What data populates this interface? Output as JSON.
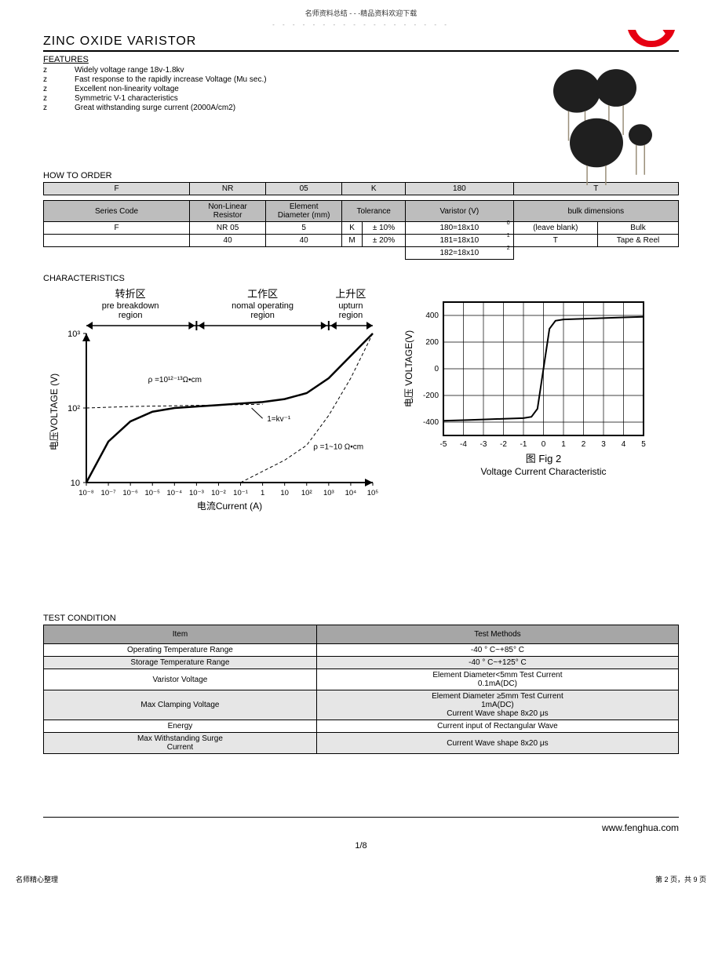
{
  "header_note": "名师资料总结 - - -精品资料欢迎下载",
  "dotted": "- - - - - - - - - - - - - - - - - -",
  "title": "ZINC  OXIDE  VARISTOR",
  "features_heading": "FEATURES",
  "features": [
    "Widely voltage range 18v-1.8kv",
    "Fast response to the rapidly increase Voltage (Mu sec.)",
    "Excellent non-linearity voltage",
    "Symmetric V-1 characteristics",
    "Great withstanding surge current (2000A/cm2)"
  ],
  "bullet_char": "z",
  "how_to_order_heading": "HOW TO ORDER",
  "order_row": [
    "F",
    "NR",
    "05",
    "K",
    "180",
    "T"
  ],
  "order_header": [
    "Series Code",
    "Non-Linear\nResistor",
    "Element\nDiameter (mm)",
    "Tolerance",
    "Varistor (V)",
    "bulk dimensions"
  ],
  "order_rows": [
    [
      "F",
      "NR 05",
      "5",
      "K",
      "±  10%",
      "180=18x10",
      "0",
      "(leave blank)",
      "Bulk"
    ],
    [
      "",
      "40",
      "40",
      "M",
      "±  20%",
      "181=18x10",
      "1",
      "T",
      "Tape & Reel"
    ],
    [
      "",
      "",
      "",
      "",
      "",
      "182=18x10",
      "2",
      "",
      ""
    ]
  ],
  "characteristics_heading": "CHARACTERISTICS",
  "chart1": {
    "type": "line-loglog",
    "regions": [
      {
        "cn": "转折区",
        "en1": "pre breakdown",
        "en2": "region"
      },
      {
        "cn": "工作区",
        "en1": "nomal operating",
        "en2": "region"
      },
      {
        "cn": "上升区",
        "en1": "upturn",
        "en2": "region"
      }
    ],
    "ylabel": "电压VOLTAGE (V)",
    "xlabel": "电流Current (A)",
    "yticks": [
      "10",
      "10²",
      "10³"
    ],
    "xticks": [
      "10⁻⁸",
      "10⁻⁷",
      "10⁻⁶",
      "10⁻⁵",
      "10⁻⁴",
      "10⁻³",
      "10⁻²",
      "10⁻¹",
      "1",
      "10",
      "10²",
      "10³",
      "10⁴",
      "10⁵"
    ],
    "annotations": [
      "ρ =10¹²⁻¹³Ω•cm",
      "1=kv⁻¹",
      "ρ =1~10 Ω•cm"
    ],
    "colors": {
      "axis": "#000000",
      "curve_main": "#000000",
      "curve_dash": "#000000",
      "bg": "#ffffff"
    },
    "font_size_label": 12,
    "font_size_tick": 11,
    "line_width_main": 2.5,
    "line_width_dash": 1,
    "dash_pattern": "4 3",
    "main_curve": [
      {
        "x": -8,
        "y": 1.0
      },
      {
        "x": -7,
        "y": 1.55
      },
      {
        "x": -6,
        "y": 1.82
      },
      {
        "x": -5,
        "y": 1.95
      },
      {
        "x": -4,
        "y": 2.0
      },
      {
        "x": -3,
        "y": 2.02
      },
      {
        "x": -2,
        "y": 2.04
      },
      {
        "x": -1,
        "y": 2.06
      },
      {
        "x": 0,
        "y": 2.08
      },
      {
        "x": 1,
        "y": 2.12
      },
      {
        "x": 2,
        "y": 2.2
      },
      {
        "x": 3,
        "y": 2.4
      },
      {
        "x": 4,
        "y": 2.7
      },
      {
        "x": 5,
        "y": 3.0
      }
    ],
    "region_splits": [
      -3,
      3
    ]
  },
  "chart2": {
    "type": "line",
    "ylabel": "电压 VOLTAGE(V)",
    "yticks": [
      "400",
      "200",
      "0",
      "-200",
      "-400"
    ],
    "xticks": [
      "-5",
      "-4",
      "-3",
      "-2",
      "-1",
      "0",
      "1",
      "2",
      "3",
      "4",
      "5"
    ],
    "caption_cn": "图 Fig 2",
    "caption_en": "Voltage Current Characteristic",
    "colors": {
      "axis": "#000000",
      "grid": "#000000",
      "curve": "#000000",
      "bg": "#ffffff"
    },
    "font_size_label": 12,
    "font_size_tick": 10,
    "line_width": 2,
    "curve": [
      {
        "x": -5,
        "y": -390
      },
      {
        "x": -4,
        "y": -385
      },
      {
        "x": -3,
        "y": -380
      },
      {
        "x": -2,
        "y": -375
      },
      {
        "x": -1,
        "y": -370
      },
      {
        "x": -0.6,
        "y": -360
      },
      {
        "x": -0.3,
        "y": -300
      },
      {
        "x": -0.15,
        "y": -150
      },
      {
        "x": 0,
        "y": 0
      },
      {
        "x": 0.15,
        "y": 150
      },
      {
        "x": 0.3,
        "y": 300
      },
      {
        "x": 0.6,
        "y": 360
      },
      {
        "x": 1,
        "y": 370
      },
      {
        "x": 2,
        "y": 375
      },
      {
        "x": 3,
        "y": 380
      },
      {
        "x": 4,
        "y": 385
      },
      {
        "x": 5,
        "y": 390
      }
    ],
    "xlim": [
      -5,
      5
    ],
    "ylim": [
      -500,
      500
    ]
  },
  "test_condition_heading": "TEST CONDITION",
  "test_header": [
    "Item",
    "Test Methods"
  ],
  "test_rows": [
    [
      "Operating Temperature Range",
      "-40 °  C~+85°  C"
    ],
    [
      "Storage Temperature Range",
      "-40 °  C~+125°  C"
    ],
    [
      "Varistor Voltage",
      "Element Diameter<5mm Test Current\n0.1mA(DC)"
    ],
    [
      "Max Clamping Voltage",
      "Element Diameter     ≥5mm Test Current\n1mA(DC)\nCurrent Wave shape 8x20       μs"
    ],
    [
      "Energy",
      "Current input of Rectangular Wave"
    ],
    [
      "Max Withstanding Surge\nCurrent",
      "Current Wave shape 8x20       μs"
    ]
  ],
  "footer_url": "www.fenghua.com",
  "footer_page": "1/8",
  "bottom_left": "名师精心整理",
  "bottom_right": "第 2 页，共 9 页",
  "logo_color": "#e60012",
  "product_colors": {
    "body": "#1f1f1f",
    "lead": "#9a8f7a"
  }
}
